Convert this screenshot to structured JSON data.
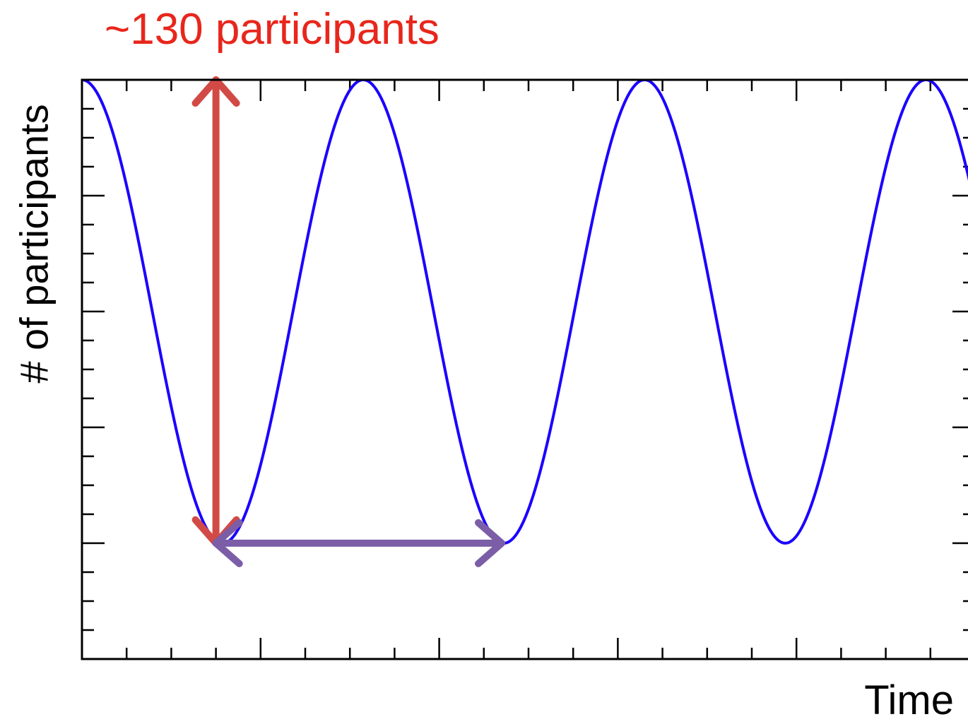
{
  "chart_data": {
    "type": "line",
    "title": "",
    "xlabel": "Time",
    "ylabel": "# of participants",
    "annotation": "~130 participants",
    "xlim": [
      0,
      10
    ],
    "ylim": [
      0,
      10
    ],
    "grid": false,
    "series": [
      {
        "color": "#1a00ff",
        "function": "cosine",
        "period": 3.15,
        "phase_x": 0,
        "y_max": 10,
        "y_min": 2
      }
    ],
    "arrows": [
      {
        "name": "amplitude",
        "color": "#d24a45",
        "from": [
          1.5,
          2
        ],
        "to": [
          1.5,
          10
        ]
      },
      {
        "name": "period",
        "color": "#7b5ea7",
        "from": [
          1.5,
          2
        ],
        "to": [
          4.7,
          2
        ]
      }
    ],
    "colors": {
      "annotation": "#e8261c",
      "axis": "#000000"
    }
  }
}
